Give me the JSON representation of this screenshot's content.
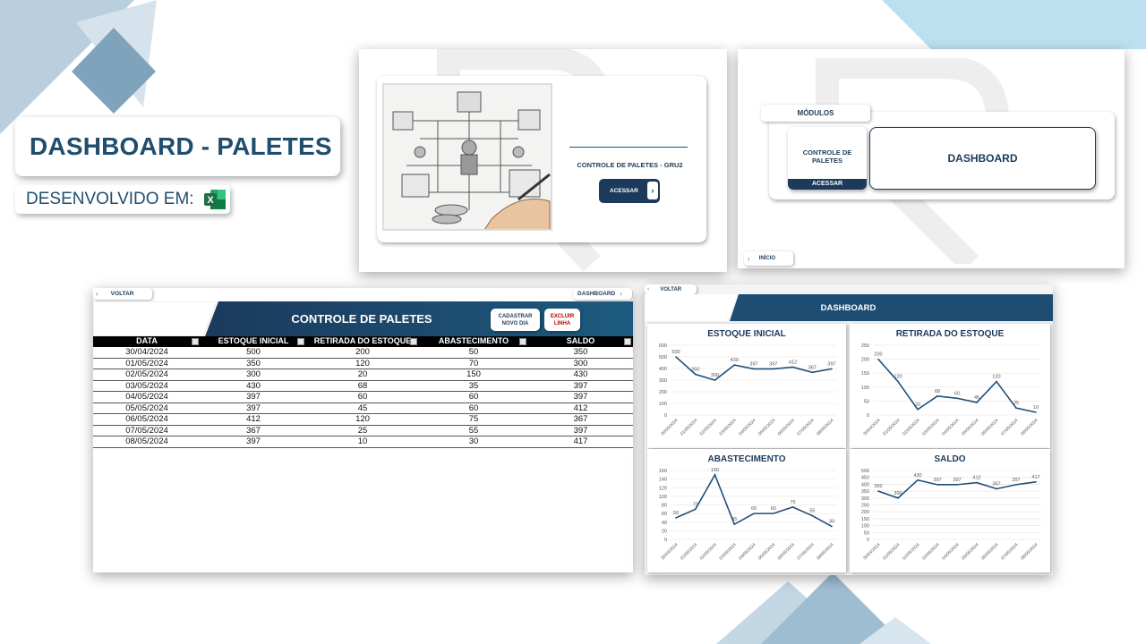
{
  "slide": {
    "title": "DASHBOARD - PALETES",
    "developed_in": "DESENVOLVIDO EM:",
    "excel_icon_letter": "X"
  },
  "screen_home": {
    "subtitle": "CONTROLE DE PALETES - GRU2",
    "access_label": "ACESSAR"
  },
  "screen_modules": {
    "modules_label": "MÓDULOS",
    "module_name": "CONTROLE DE PALETES",
    "module_access": "ACESSAR",
    "dashboard_label": "DASHBOARD",
    "home_label": "INÍCIO"
  },
  "screen_table": {
    "back_label": "VOLTAR",
    "dashboard_link": "DASHBOARD",
    "title": "CONTROLE DE PALETES",
    "add_day_label": "CADASTRAR NOVO DIA",
    "delete_row_label": "EXCLUIR LINHA",
    "columns": [
      "DATA",
      "ESTOQUE INICIAL",
      "RETIRADA DO ESTOQUE",
      "ABASTECIMENTO",
      "SALDO"
    ],
    "rows": [
      [
        "30/04/2024",
        "500",
        "200",
        "50",
        "350"
      ],
      [
        "01/05/2024",
        "350",
        "120",
        "70",
        "300"
      ],
      [
        "02/05/2024",
        "300",
        "20",
        "150",
        "430"
      ],
      [
        "03/05/2024",
        "430",
        "68",
        "35",
        "397"
      ],
      [
        "04/05/2024",
        "397",
        "60",
        "60",
        "397"
      ],
      [
        "05/05/2024",
        "397",
        "45",
        "60",
        "412"
      ],
      [
        "06/05/2024",
        "412",
        "120",
        "75",
        "367"
      ],
      [
        "07/05/2024",
        "367",
        "25",
        "55",
        "397"
      ],
      [
        "08/05/2024",
        "397",
        "10",
        "30",
        "417"
      ]
    ]
  },
  "screen_dashboard": {
    "back_label": "VOLTAR",
    "title": "DASHBOARD"
  },
  "colors": {
    "navy": "#1b3a5c",
    "title_text": "#1f4e6e",
    "line": "#1f4e79",
    "excel_green": "#1d6f42",
    "deco_blue": "#a9c6d8"
  },
  "chart_data": [
    {
      "type": "line",
      "title": "ESTOQUE INICIAL",
      "categories": [
        "30/04/2024",
        "01/05/2024",
        "02/05/2024",
        "03/05/2024",
        "04/05/2024",
        "05/05/2024",
        "06/05/2024",
        "07/05/2024",
        "08/05/2024"
      ],
      "values": [
        500,
        350,
        300,
        430,
        397,
        397,
        412,
        367,
        397
      ],
      "ylim": [
        0,
        600
      ],
      "yticks": [
        0,
        100,
        200,
        300,
        400,
        500,
        600
      ],
      "grid": true
    },
    {
      "type": "line",
      "title": "RETIRADA DO ESTOQUE",
      "categories": [
        "30/04/2024",
        "01/05/2024",
        "02/05/2024",
        "03/05/2024",
        "04/05/2024",
        "05/05/2024",
        "06/05/2024",
        "07/05/2024",
        "08/05/2024"
      ],
      "values": [
        200,
        120,
        20,
        68,
        60,
        45,
        120,
        25,
        10
      ],
      "ylim": [
        0,
        250
      ],
      "yticks": [
        0,
        50,
        100,
        150,
        200,
        250
      ],
      "grid": true
    },
    {
      "type": "line",
      "title": "ABASTECIMENTO",
      "categories": [
        "30/04/2024",
        "01/05/2024",
        "02/05/2024",
        "03/05/2024",
        "04/05/2024",
        "05/05/2024",
        "06/05/2024",
        "07/05/2024",
        "08/05/2024"
      ],
      "values": [
        50,
        70,
        150,
        35,
        60,
        60,
        75,
        55,
        30
      ],
      "ylim": [
        0,
        160
      ],
      "yticks": [
        0,
        20,
        40,
        60,
        80,
        100,
        120,
        140,
        160
      ],
      "grid": true
    },
    {
      "type": "line",
      "title": "SALDO",
      "categories": [
        "30/04/2024",
        "01/05/2024",
        "02/05/2024",
        "03/05/2024",
        "04/05/2024",
        "05/05/2024",
        "06/05/2024",
        "07/05/2024",
        "08/05/2024"
      ],
      "values": [
        350,
        300,
        430,
        397,
        397,
        412,
        367,
        397,
        417
      ],
      "ylim": [
        0,
        500
      ],
      "yticks": [
        0,
        50,
        100,
        150,
        200,
        250,
        300,
        350,
        400,
        450,
        500
      ],
      "grid": true
    }
  ]
}
